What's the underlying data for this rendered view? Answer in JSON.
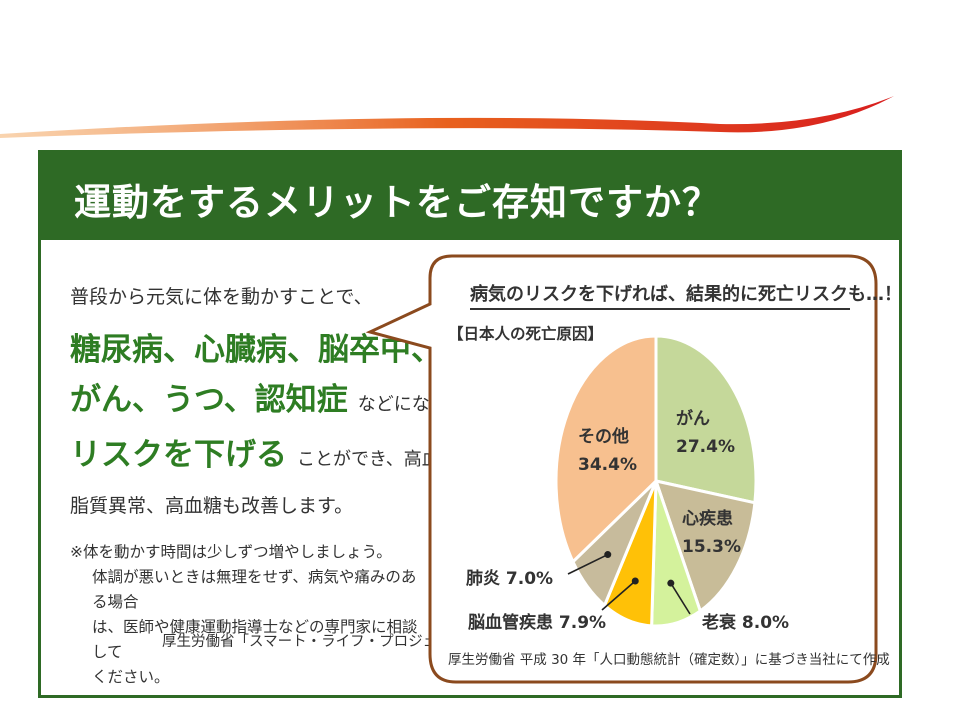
{
  "banner": {
    "title": "運動をするメリットをご存知ですか？"
  },
  "left": {
    "line1": "普段から元気に体を動かすことで、",
    "diseases1": "糖尿病、心臓病、脳卒中、",
    "diseases2": "がん、うつ、認知症",
    "diseases2_tail": "などになる",
    "risk": "リスクを下げる",
    "risk_tail": "ことができ、高血圧や",
    "line_last": "脂質異常、高血糖も改善します。",
    "note_line1": "※体を動かす時間は少しずつ増やしましょう。",
    "note_line2": "体調が悪いときは無理をせず、病気や痛みのある場合",
    "note_line3": "は、医師や健康運動指導士などの専門家に相談して",
    "note_line4": "ください。",
    "source": "厚生労働省「スマート・ライフ・プロジェクト」HP"
  },
  "bubble": {
    "title": "病気のリスクを下げれば、結果的に死亡リスクも…！",
    "chart_title": "【日本人の死亡原因】",
    "source": "厚生労働省  平成 30 年「人口動態統計（確定数）」に基づき当社にて作成"
  },
  "colors": {
    "banner": "#2e6a25",
    "accent_text": "#2e7d23",
    "bubble_border": "#8b4a1e",
    "swoosh": "#e03a1e"
  },
  "chart_data": {
    "type": "pie",
    "title": "【日本人の死亡原因】",
    "slices": [
      {
        "name": "がん",
        "value": 27.4,
        "pct": "27.4%",
        "color": "#c5d89a"
      },
      {
        "name": "心疾患",
        "value": 15.3,
        "pct": "15.3%",
        "color": "#c8bc98"
      },
      {
        "name": "老衰",
        "value": 8.0,
        "pct": "8.0%",
        "color": "#d4f29c"
      },
      {
        "name": "脳血管疾患",
        "value": 7.9,
        "pct": "7.9%",
        "color": "#ffc107"
      },
      {
        "name": "肺炎",
        "value": 7.0,
        "pct": "7.0%",
        "color": "#c7bb9c"
      },
      {
        "name": "その他",
        "value": 34.4,
        "pct": "34.4%",
        "color": "#f7c08f"
      }
    ]
  }
}
